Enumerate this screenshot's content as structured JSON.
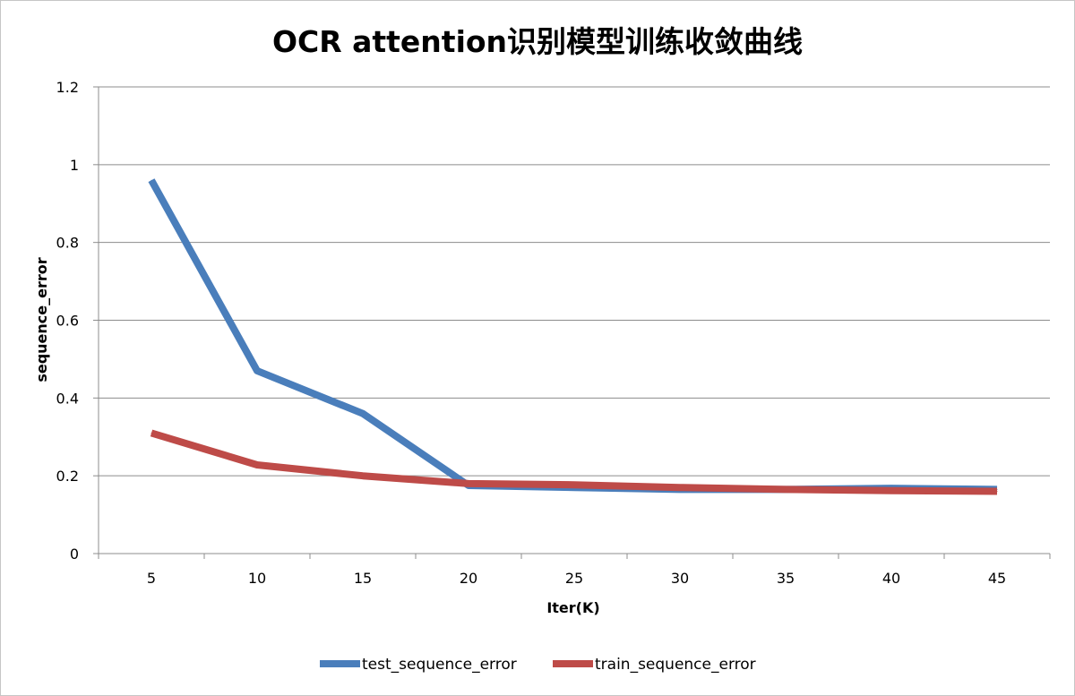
{
  "chart_data": {
    "type": "line",
    "title": "OCR attention识别模型训练收敛曲线",
    "xlabel": "Iter(K)",
    "ylabel": "sequence_error",
    "categories": [
      "5",
      "10",
      "15",
      "20",
      "25",
      "30",
      "35",
      "40",
      "45"
    ],
    "ylim": [
      0,
      1.2
    ],
    "yticks": [
      "0",
      "0.2",
      "0.4",
      "0.6",
      "0.8",
      "1",
      "1.2"
    ],
    "grid": true,
    "legend_position": "bottom",
    "series": [
      {
        "name": "test_sequence_error",
        "color": "#4a7ebb",
        "values": [
          0.96,
          0.47,
          0.36,
          0.175,
          0.17,
          0.165,
          0.165,
          0.168,
          0.165
        ]
      },
      {
        "name": "train_sequence_error",
        "color": "#be4b48",
        "values": [
          0.31,
          0.228,
          0.2,
          0.18,
          0.177,
          0.17,
          0.165,
          0.162,
          0.16
        ]
      }
    ]
  }
}
